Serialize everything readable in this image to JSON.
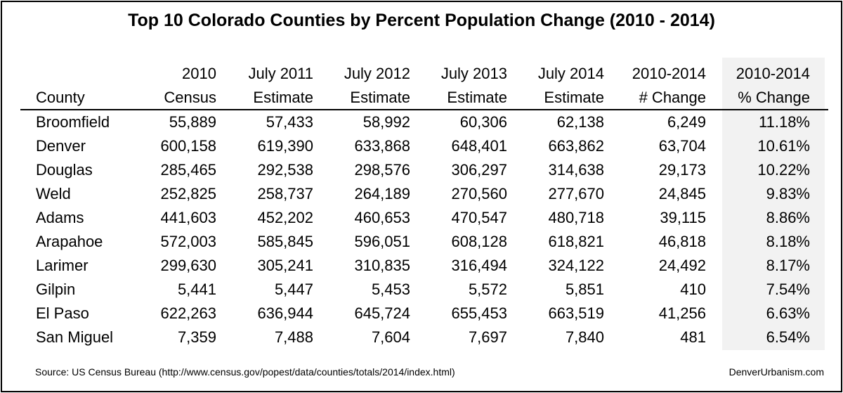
{
  "chart_data": {
    "type": "table",
    "title": "Top 10 Colorado Counties by Percent Population Change (2010 - 2014)",
    "columns": [
      [
        "",
        "County"
      ],
      [
        "2010",
        "Census"
      ],
      [
        "July 2011",
        "Estimate"
      ],
      [
        "July 2012",
        "Estimate"
      ],
      [
        "July 2013",
        "Estimate"
      ],
      [
        "July 2014",
        "Estimate"
      ],
      [
        "2010-2014",
        "# Change"
      ],
      [
        "2010-2014",
        "% Change"
      ]
    ],
    "rows": [
      [
        "Broomfield",
        "55,889",
        "57,433",
        "58,992",
        "60,306",
        "62,138",
        "6,249",
        "11.18%"
      ],
      [
        "Denver",
        "600,158",
        "619,390",
        "633,868",
        "648,401",
        "663,862",
        "63,704",
        "10.61%"
      ],
      [
        "Douglas",
        "285,465",
        "292,538",
        "298,576",
        "306,297",
        "314,638",
        "29,173",
        "10.22%"
      ],
      [
        "Weld",
        "252,825",
        "258,737",
        "264,189",
        "270,560",
        "277,670",
        "24,845",
        "9.83%"
      ],
      [
        "Adams",
        "441,603",
        "452,202",
        "460,653",
        "470,547",
        "480,718",
        "39,115",
        "8.86%"
      ],
      [
        "Arapahoe",
        "572,003",
        "585,845",
        "596,051",
        "608,128",
        "618,821",
        "46,818",
        "8.18%"
      ],
      [
        "Larimer",
        "299,630",
        "305,241",
        "310,835",
        "316,494",
        "324,122",
        "24,492",
        "8.17%"
      ],
      [
        "Gilpin",
        "5,441",
        "5,447",
        "5,453",
        "5,572",
        "5,851",
        "410",
        "7.54%"
      ],
      [
        "El Paso",
        "622,263",
        "636,944",
        "645,724",
        "655,453",
        "663,519",
        "41,256",
        "6.63%"
      ],
      [
        "San Miguel",
        "7,359",
        "7,488",
        "7,604",
        "7,697",
        "7,840",
        "481",
        "6.54%"
      ]
    ],
    "highlight_column_color": "#f2f2f2"
  },
  "footer": {
    "source": "Source: US Census Bureau (http://www.census.gov/popest/data/counties/totals/2014/index.html)",
    "credit": "DenverUrbanism.com"
  }
}
